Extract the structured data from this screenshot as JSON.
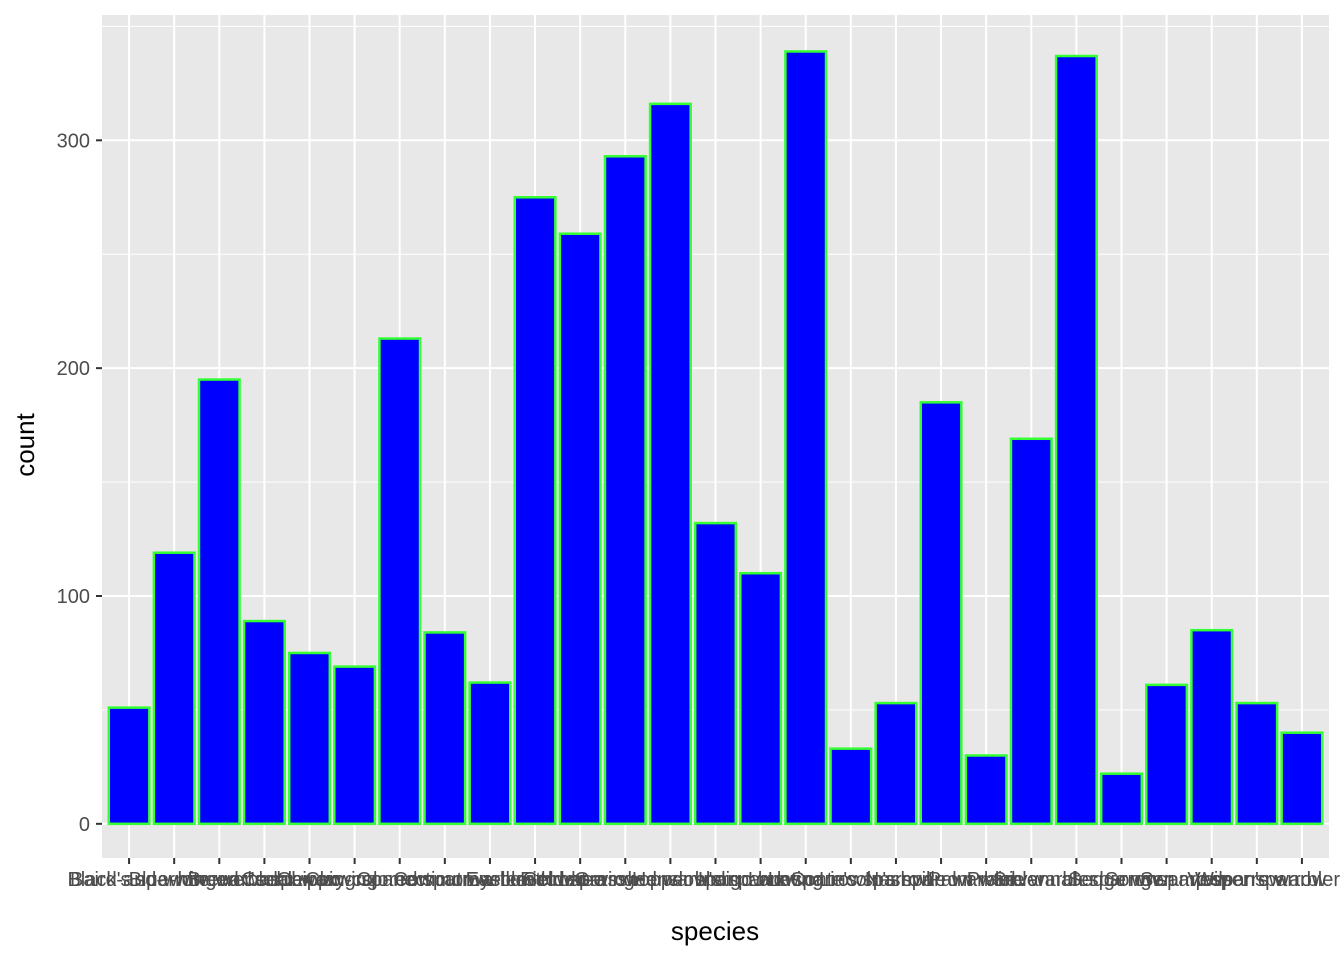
{
  "chart_data": {
    "type": "bar",
    "title": "",
    "xlabel": "species",
    "ylabel": "count",
    "ylim": [
      -15,
      355
    ],
    "yticks": [
      0,
      100,
      200,
      300
    ],
    "grid": true,
    "legend": "none",
    "colors": {
      "panel": "#e8e8e8",
      "grid_major": "#ffffff",
      "bar_fill": "#0000ff",
      "bar_outline": "#33ff33"
    },
    "categories": [
      "Baird's sparrow",
      "Black-and-white warbler",
      "Blue-winged warbler",
      "Brewer's sparrow",
      "Cedar waxwing",
      "Chipping sparrow",
      "Clay-colored sparrow",
      "Connecticut warbler",
      "Common yellowthroat",
      "Eastern towhee",
      "Field sparrow",
      "Golden-winged warbler",
      "Grasshopper sparrow",
      "Henslow's sparrow",
      "Indigo bunting",
      "Lark sparrow",
      "LeConte's sparrow",
      "Lincoln's sparrow",
      "Nashville warbler",
      "Palm warbler",
      "Prairie warbler",
      "Savannah sparrow",
      "Sedge wren",
      "Song sparrow",
      "Swamp sparrow",
      "Vesper sparrow",
      "Wilson's warbler"
    ],
    "values": [
      51,
      119,
      195,
      89,
      75,
      69,
      213,
      84,
      62,
      275,
      259,
      293,
      316,
      132,
      110,
      339,
      33,
      53,
      185,
      30,
      169,
      337,
      22,
      61,
      85,
      53,
      40
    ]
  }
}
